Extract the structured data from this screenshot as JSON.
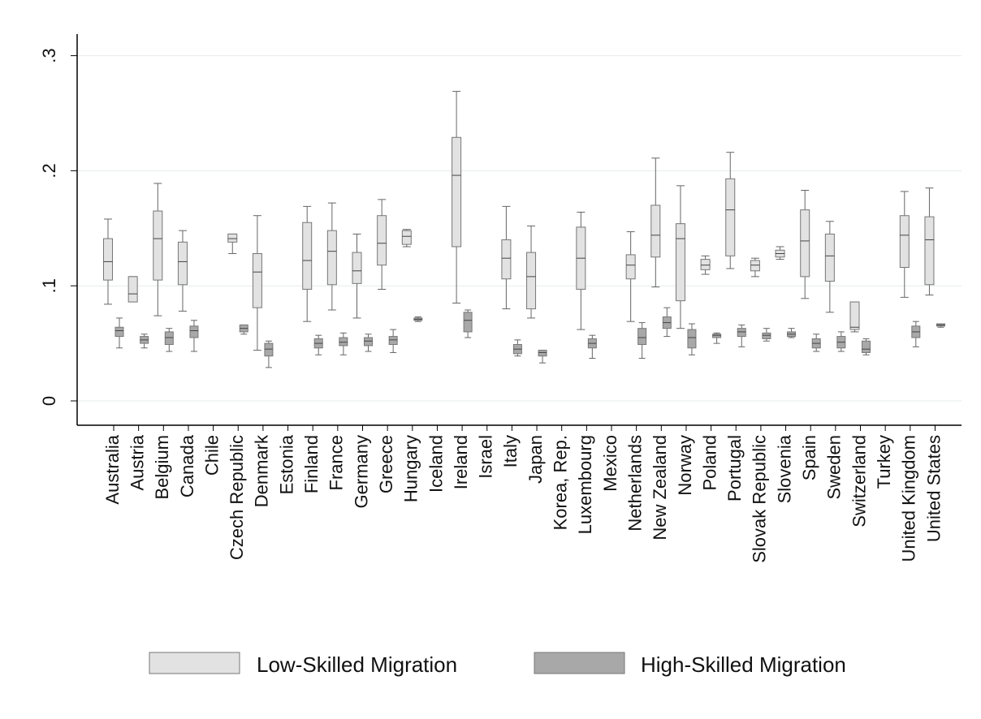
{
  "chart_data": {
    "type": "box",
    "ylim": [
      -0.02,
      0.32
    ],
    "yticks": [
      0,
      0.1,
      0.2,
      0.3
    ],
    "ytick_labels": [
      "0",
      ".1",
      ".2",
      ".3"
    ],
    "grid": true,
    "legend_position": "bottom",
    "colors": {
      "low": "#e2e2e2",
      "high": "#a8a8a8"
    },
    "categories": [
      "Australia",
      "Austria",
      "Belgium",
      "Canada",
      "Chile",
      "Czech Republic",
      "Denmark",
      "Estonia",
      "Finland",
      "France",
      "Germany",
      "Greece",
      "Hungary",
      "Iceland",
      "Ireland",
      "Israel",
      "Italy",
      "Japan",
      "Korea, Rep.",
      "Luxembourg",
      "Mexico",
      "Netherlands",
      "New Zealand",
      "Norway",
      "Poland",
      "Portugal",
      "Slovak Republic",
      "Slovenia",
      "Spain",
      "Sweden",
      "Switzerland",
      "Turkey",
      "United Kingdom",
      "United States"
    ],
    "series": [
      {
        "name": "Low-Skilled Migration",
        "color_key": "low",
        "boxes": [
          {
            "cat": 0,
            "min": 0.084,
            "q1": 0.105,
            "median": 0.121,
            "q3": 0.141,
            "max": 0.158
          },
          {
            "cat": 1,
            "min": 0.086,
            "q1": 0.086,
            "median": 0.093,
            "q3": 0.108,
            "max": 0.108
          },
          {
            "cat": 2,
            "min": 0.074,
            "q1": 0.105,
            "median": 0.141,
            "q3": 0.165,
            "max": 0.189
          },
          {
            "cat": 3,
            "min": 0.078,
            "q1": 0.101,
            "median": 0.121,
            "q3": 0.138,
            "max": 0.148
          },
          {
            "cat": 5,
            "min": 0.128,
            "q1": 0.138,
            "median": 0.141,
            "q3": 0.145,
            "max": 0.145
          },
          {
            "cat": 6,
            "min": 0.044,
            "q1": 0.081,
            "median": 0.112,
            "q3": 0.128,
            "max": 0.161
          },
          {
            "cat": 8,
            "min": 0.069,
            "q1": 0.097,
            "median": 0.122,
            "q3": 0.155,
            "max": 0.169
          },
          {
            "cat": 9,
            "min": 0.079,
            "q1": 0.101,
            "median": 0.13,
            "q3": 0.148,
            "max": 0.172
          },
          {
            "cat": 10,
            "min": 0.072,
            "q1": 0.102,
            "median": 0.113,
            "q3": 0.129,
            "max": 0.145
          },
          {
            "cat": 11,
            "min": 0.097,
            "q1": 0.118,
            "median": 0.137,
            "q3": 0.161,
            "max": 0.175
          },
          {
            "cat": 12,
            "min": 0.134,
            "q1": 0.136,
            "median": 0.143,
            "q3": 0.148,
            "max": 0.149
          },
          {
            "cat": 14,
            "min": 0.085,
            "q1": 0.134,
            "median": 0.196,
            "q3": 0.229,
            "max": 0.269
          },
          {
            "cat": 16,
            "min": 0.08,
            "q1": 0.106,
            "median": 0.124,
            "q3": 0.14,
            "max": 0.169
          },
          {
            "cat": 17,
            "min": 0.072,
            "q1": 0.08,
            "median": 0.108,
            "q3": 0.129,
            "max": 0.152
          },
          {
            "cat": 19,
            "min": 0.062,
            "q1": 0.097,
            "median": 0.124,
            "q3": 0.151,
            "max": 0.164
          },
          {
            "cat": 21,
            "min": 0.069,
            "q1": 0.106,
            "median": 0.118,
            "q3": 0.127,
            "max": 0.147
          },
          {
            "cat": 22,
            "min": 0.099,
            "q1": 0.125,
            "median": 0.144,
            "q3": 0.17,
            "max": 0.211
          },
          {
            "cat": 23,
            "min": 0.063,
            "q1": 0.087,
            "median": 0.141,
            "q3": 0.154,
            "max": 0.187
          },
          {
            "cat": 24,
            "min": 0.11,
            "q1": 0.114,
            "median": 0.118,
            "q3": 0.123,
            "max": 0.126
          },
          {
            "cat": 25,
            "min": 0.115,
            "q1": 0.126,
            "median": 0.166,
            "q3": 0.193,
            "max": 0.216
          },
          {
            "cat": 26,
            "min": 0.108,
            "q1": 0.113,
            "median": 0.118,
            "q3": 0.122,
            "max": 0.124
          },
          {
            "cat": 27,
            "min": 0.123,
            "q1": 0.125,
            "median": 0.128,
            "q3": 0.131,
            "max": 0.134
          },
          {
            "cat": 28,
            "min": 0.089,
            "q1": 0.108,
            "median": 0.139,
            "q3": 0.166,
            "max": 0.183
          },
          {
            "cat": 29,
            "min": 0.077,
            "q1": 0.104,
            "median": 0.126,
            "q3": 0.145,
            "max": 0.156
          },
          {
            "cat": 30,
            "min": 0.06,
            "q1": 0.062,
            "median": 0.064,
            "q3": 0.086,
            "max": 0.086
          },
          {
            "cat": 32,
            "min": 0.09,
            "q1": 0.116,
            "median": 0.144,
            "q3": 0.161,
            "max": 0.182
          },
          {
            "cat": 33,
            "min": 0.092,
            "q1": 0.101,
            "median": 0.14,
            "q3": 0.16,
            "max": 0.185
          }
        ]
      },
      {
        "name": "High-Skilled Migration",
        "color_key": "high",
        "boxes": [
          {
            "cat": 0,
            "min": 0.046,
            "q1": 0.056,
            "median": 0.061,
            "q3": 0.064,
            "max": 0.072
          },
          {
            "cat": 1,
            "min": 0.046,
            "q1": 0.05,
            "median": 0.053,
            "q3": 0.056,
            "max": 0.058
          },
          {
            "cat": 2,
            "min": 0.043,
            "q1": 0.049,
            "median": 0.055,
            "q3": 0.06,
            "max": 0.063
          },
          {
            "cat": 3,
            "min": 0.043,
            "q1": 0.055,
            "median": 0.061,
            "q3": 0.065,
            "max": 0.07
          },
          {
            "cat": 5,
            "min": 0.058,
            "q1": 0.06,
            "median": 0.063,
            "q3": 0.066,
            "max": 0.066
          },
          {
            "cat": 6,
            "min": 0.029,
            "q1": 0.039,
            "median": 0.045,
            "q3": 0.05,
            "max": 0.052
          },
          {
            "cat": 8,
            "min": 0.04,
            "q1": 0.046,
            "median": 0.05,
            "q3": 0.054,
            "max": 0.057
          },
          {
            "cat": 9,
            "min": 0.04,
            "q1": 0.048,
            "median": 0.051,
            "q3": 0.055,
            "max": 0.059
          },
          {
            "cat": 10,
            "min": 0.043,
            "q1": 0.048,
            "median": 0.052,
            "q3": 0.055,
            "max": 0.058
          },
          {
            "cat": 11,
            "min": 0.042,
            "q1": 0.049,
            "median": 0.053,
            "q3": 0.056,
            "max": 0.062
          },
          {
            "cat": 12,
            "min": 0.069,
            "q1": 0.07,
            "median": 0.071,
            "q3": 0.072,
            "max": 0.073
          },
          {
            "cat": 14,
            "min": 0.055,
            "q1": 0.06,
            "median": 0.07,
            "q3": 0.077,
            "max": 0.079
          },
          {
            "cat": 16,
            "min": 0.039,
            "q1": 0.041,
            "median": 0.045,
            "q3": 0.049,
            "max": 0.053
          },
          {
            "cat": 17,
            "min": 0.033,
            "q1": 0.039,
            "median": 0.042,
            "q3": 0.044,
            "max": 0.044
          },
          {
            "cat": 19,
            "min": 0.037,
            "q1": 0.046,
            "median": 0.05,
            "q3": 0.054,
            "max": 0.057
          },
          {
            "cat": 21,
            "min": 0.037,
            "q1": 0.049,
            "median": 0.055,
            "q3": 0.063,
            "max": 0.068
          },
          {
            "cat": 22,
            "min": 0.056,
            "q1": 0.063,
            "median": 0.068,
            "q3": 0.073,
            "max": 0.081
          },
          {
            "cat": 23,
            "min": 0.04,
            "q1": 0.046,
            "median": 0.055,
            "q3": 0.062,
            "max": 0.067
          },
          {
            "cat": 24,
            "min": 0.05,
            "q1": 0.055,
            "median": 0.057,
            "q3": 0.058,
            "max": 0.059
          },
          {
            "cat": 25,
            "min": 0.047,
            "q1": 0.056,
            "median": 0.06,
            "q3": 0.063,
            "max": 0.066
          },
          {
            "cat": 26,
            "min": 0.052,
            "q1": 0.054,
            "median": 0.057,
            "q3": 0.059,
            "max": 0.063
          },
          {
            "cat": 27,
            "min": 0.055,
            "q1": 0.056,
            "median": 0.058,
            "q3": 0.06,
            "max": 0.063
          },
          {
            "cat": 28,
            "min": 0.043,
            "q1": 0.046,
            "median": 0.05,
            "q3": 0.054,
            "max": 0.058
          },
          {
            "cat": 29,
            "min": 0.043,
            "q1": 0.046,
            "median": 0.051,
            "q3": 0.056,
            "max": 0.06
          },
          {
            "cat": 30,
            "min": 0.04,
            "q1": 0.042,
            "median": 0.045,
            "q3": 0.052,
            "max": 0.054
          },
          {
            "cat": 32,
            "min": 0.047,
            "q1": 0.055,
            "median": 0.06,
            "q3": 0.065,
            "max": 0.069
          },
          {
            "cat": 33,
            "min": 0.064,
            "q1": 0.065,
            "median": 0.066,
            "q3": 0.067,
            "max": 0.067
          }
        ]
      }
    ]
  },
  "legend": {
    "low_label": "Low-Skilled Migration",
    "high_label": "High-Skilled Migration"
  }
}
